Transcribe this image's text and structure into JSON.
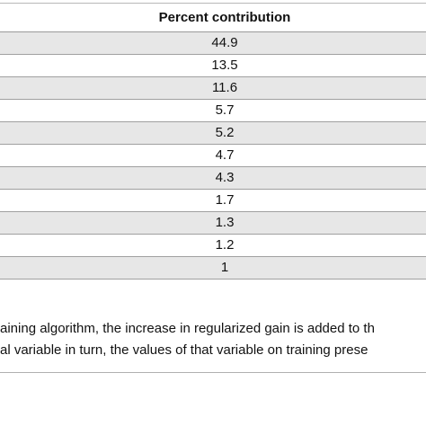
{
  "table": {
    "header": "Percent contribution",
    "values": [
      "44.9",
      "13.5",
      "11.6",
      "5.7",
      "5.2",
      "4.7",
      "4.3",
      "1.7",
      "1.3",
      "1.2",
      "1"
    ]
  },
  "footnote": {
    "lines": [
      "aining algorithm, the increase in regularized gain is added to th",
      "al variable in turn, the values of that variable on training prese"
    ]
  }
}
